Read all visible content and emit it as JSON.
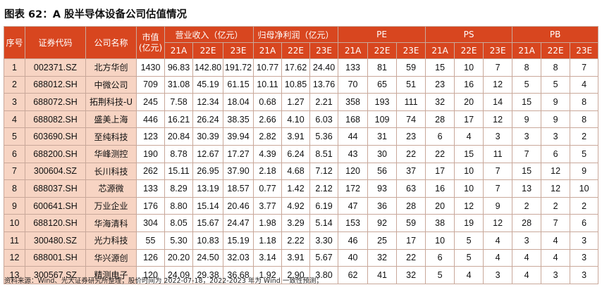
{
  "title": "图表 62：A 股半导体设备公司估值情况",
  "headers": {
    "seq": "序号",
    "code": "证券代码",
    "name": "公司名称",
    "mcap_line1": "市值",
    "mcap_line2": "(亿元)",
    "groups": [
      "营业收入（亿元）",
      "归母净利润（亿元）",
      "PE",
      "PS",
      "PB"
    ],
    "years": [
      "21A",
      "22E",
      "23E"
    ]
  },
  "rows": [
    {
      "seq": "1",
      "code": "002371.SZ",
      "name": "北方华创",
      "mcap": "1430",
      "rev": [
        "96.83",
        "142.80",
        "191.72"
      ],
      "np": [
        "10.77",
        "17.62",
        "24.40"
      ],
      "pe": [
        "133",
        "81",
        "59"
      ],
      "ps": [
        "15",
        "10",
        "7"
      ],
      "pb": [
        "8",
        "8",
        "7"
      ]
    },
    {
      "seq": "2",
      "code": "688012.SH",
      "name": "中微公司",
      "mcap": "709",
      "rev": [
        "31.08",
        "45.19",
        "61.15"
      ],
      "np": [
        "10.11",
        "10.85",
        "13.76"
      ],
      "pe": [
        "70",
        "65",
        "51"
      ],
      "ps": [
        "23",
        "16",
        "12"
      ],
      "pb": [
        "5",
        "5",
        "4"
      ]
    },
    {
      "seq": "3",
      "code": "688072.SH",
      "name": "拓荆科技-U",
      "mcap": "245",
      "rev": [
        "7.58",
        "12.34",
        "18.04"
      ],
      "np": [
        "0.68",
        "1.27",
        "2.21"
      ],
      "pe": [
        "358",
        "193",
        "111"
      ],
      "ps": [
        "32",
        "20",
        "14"
      ],
      "pb": [
        "15",
        "9",
        "8"
      ]
    },
    {
      "seq": "4",
      "code": "688082.SH",
      "name": "盛美上海",
      "mcap": "446",
      "rev": [
        "16.21",
        "26.24",
        "38.35"
      ],
      "np": [
        "2.66",
        "4.10",
        "6.03"
      ],
      "pe": [
        "168",
        "109",
        "74"
      ],
      "ps": [
        "28",
        "17",
        "12"
      ],
      "pb": [
        "9",
        "9",
        "8"
      ]
    },
    {
      "seq": "5",
      "code": "603690.SH",
      "name": "至纯科技",
      "mcap": "123",
      "rev": [
        "20.84",
        "30.39",
        "39.94"
      ],
      "np": [
        "2.82",
        "3.91",
        "5.36"
      ],
      "pe": [
        "44",
        "31",
        "23"
      ],
      "ps": [
        "6",
        "4",
        "3"
      ],
      "pb": [
        "3",
        "3",
        "2"
      ]
    },
    {
      "seq": "6",
      "code": "688200.SH",
      "name": "华峰测控",
      "mcap": "190",
      "rev": [
        "8.78",
        "12.67",
        "17.27"
      ],
      "np": [
        "4.39",
        "6.24",
        "8.51"
      ],
      "pe": [
        "43",
        "30",
        "22"
      ],
      "ps": [
        "22",
        "15",
        "11"
      ],
      "pb": [
        "7",
        "6",
        "5"
      ]
    },
    {
      "seq": "7",
      "code": "300604.SZ",
      "name": "长川科技",
      "mcap": "262",
      "rev": [
        "15.11",
        "26.95",
        "37.90"
      ],
      "np": [
        "2.18",
        "4.68",
        "7.12"
      ],
      "pe": [
        "120",
        "56",
        "37"
      ],
      "ps": [
        "17",
        "10",
        "7"
      ],
      "pb": [
        "15",
        "12",
        "9"
      ]
    },
    {
      "seq": "8",
      "code": "688037.SH",
      "name": "芯源微",
      "mcap": "133",
      "rev": [
        "8.29",
        "13.19",
        "18.57"
      ],
      "np": [
        "0.77",
        "1.42",
        "2.12"
      ],
      "pe": [
        "172",
        "93",
        "63"
      ],
      "ps": [
        "16",
        "10",
        "7"
      ],
      "pb": [
        "13",
        "12",
        "10"
      ]
    },
    {
      "seq": "9",
      "code": "600641.SH",
      "name": "万业企业",
      "mcap": "176",
      "rev": [
        "8.80",
        "15.14",
        "20.46"
      ],
      "np": [
        "3.77",
        "4.92",
        "6.19"
      ],
      "pe": [
        "47",
        "36",
        "28"
      ],
      "ps": [
        "20",
        "12",
        "9"
      ],
      "pb": [
        "2",
        "2",
        "2"
      ]
    },
    {
      "seq": "10",
      "code": "688120.SH",
      "name": "华海清科",
      "mcap": "304",
      "rev": [
        "8.05",
        "15.67",
        "24.47"
      ],
      "np": [
        "1.98",
        "3.29",
        "5.14"
      ],
      "pe": [
        "153",
        "92",
        "59"
      ],
      "ps": [
        "38",
        "19",
        "12"
      ],
      "pb": [
        "28",
        "7",
        "6"
      ]
    },
    {
      "seq": "11",
      "code": "300480.SZ",
      "name": "光力科技",
      "mcap": "55",
      "rev": [
        "5.30",
        "10.83",
        "15.19"
      ],
      "np": [
        "1.18",
        "2.22",
        "3.30"
      ],
      "pe": [
        "46",
        "25",
        "17"
      ],
      "ps": [
        "10",
        "5",
        "4"
      ],
      "pb": [
        "3",
        "4",
        "3"
      ]
    },
    {
      "seq": "12",
      "code": "688001.SH",
      "name": "华兴源创",
      "mcap": "126",
      "rev": [
        "20.20",
        "24.50",
        "32.03"
      ],
      "np": [
        "3.14",
        "3.91",
        "5.67"
      ],
      "pe": [
        "40",
        "32",
        "22"
      ],
      "ps": [
        "6",
        "5",
        "4"
      ],
      "pb": [
        "4",
        "4",
        "3"
      ]
    },
    {
      "seq": "13",
      "code": "300567.SZ",
      "name": "精测电子",
      "mcap": "120",
      "rev": [
        "24.09",
        "29.38",
        "36.68"
      ],
      "np": [
        "1.92",
        "2.90",
        "3.80"
      ],
      "pe": [
        "62",
        "41",
        "32"
      ],
      "ps": [
        "5",
        "4",
        "3"
      ],
      "pb": [
        "4",
        "3",
        "3"
      ]
    }
  ],
  "footer": "资料来源：Wind、光大证券研究所整理；股价时间为 2022-07-18，2022-2023 年为 Wind 一致性预测；",
  "colors": {
    "header_bg": "#d8461f",
    "id_cell_bg": "#f7d4c3",
    "border": "#c9a89a"
  }
}
